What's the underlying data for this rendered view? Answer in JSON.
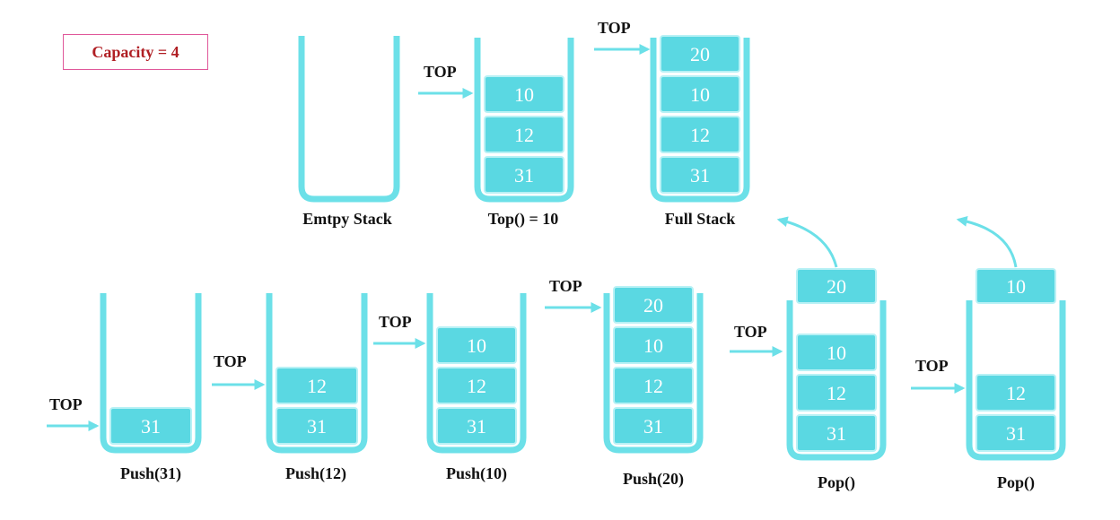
{
  "capacity_label": "Capacity = 4",
  "colors": {
    "stack": "#6ce0e8",
    "cell": "#5ad8e2",
    "cell_border": "#b8f1f5",
    "arrow": "#6ce0e8",
    "capacity_border": "#e0589a",
    "capacity_text": "#b01f24"
  },
  "top_label": "TOP",
  "stacks": [
    {
      "id": "empty",
      "caption": "Emtpy Stack",
      "cells": [],
      "popped": null
    },
    {
      "id": "top",
      "caption": "Top() = 10",
      "cells": [
        "10",
        "12",
        "31"
      ],
      "popped": null
    },
    {
      "id": "full",
      "caption": "Full Stack",
      "cells": [
        "20",
        "10",
        "12",
        "31"
      ],
      "popped": null
    },
    {
      "id": "push31",
      "caption": "Push(31)",
      "cells": [
        "31"
      ],
      "popped": null
    },
    {
      "id": "push12",
      "caption": "Push(12)",
      "cells": [
        "12",
        "31"
      ],
      "popped": null
    },
    {
      "id": "push10",
      "caption": "Push(10)",
      "cells": [
        "10",
        "12",
        "31"
      ],
      "popped": null
    },
    {
      "id": "push20",
      "caption": "Push(20)",
      "cells": [
        "20",
        "10",
        "12",
        "31"
      ],
      "popped": null
    },
    {
      "id": "pop1",
      "caption": "Pop()",
      "cells": [
        "10",
        "12",
        "31"
      ],
      "popped": "20"
    },
    {
      "id": "pop2",
      "caption": "Pop()",
      "cells": [
        "12",
        "31"
      ],
      "popped": "10"
    }
  ]
}
